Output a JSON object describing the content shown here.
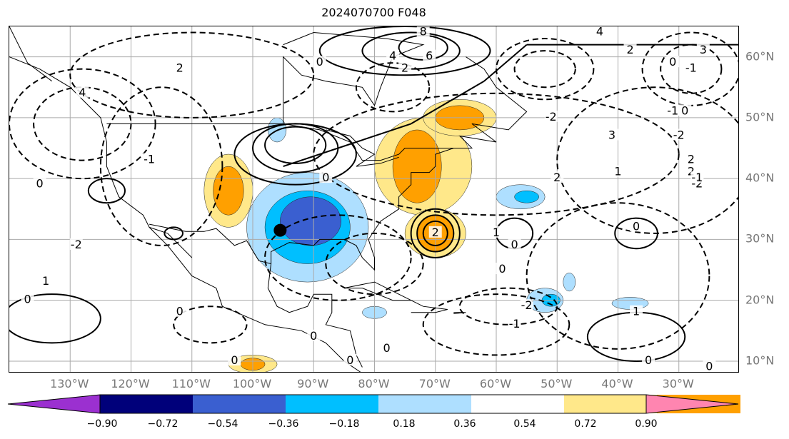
{
  "title": "2024070700 F048",
  "lon_labels": [
    "130°W",
    "120°W",
    "110°W",
    "100°W",
    "90°W",
    "80°W",
    "70°W",
    "60°W",
    "50°W",
    "40°W",
    "30°W"
  ],
  "lat_labels": [
    "60°N",
    "50°N",
    "40°N",
    "30°N",
    "20°N",
    "10°N"
  ],
  "colorbar": {
    "colors": [
      "#9b30d0",
      "#00007a",
      "#3a5fd0",
      "#00bfff",
      "#aedfff",
      "#ffffff",
      "#ffe88a",
      "#ffa000",
      "#ff3d00",
      "#b22222",
      "#ff85b0"
    ],
    "tick_labels": [
      "−0.90",
      "−0.72",
      "−0.54",
      "−0.36",
      "−0.18",
      "0.18",
      "0.36",
      "0.54",
      "0.72",
      "0.90"
    ]
  },
  "contour_labels": [
    {
      "text": "2",
      "lon": -112,
      "lat": 58
    },
    {
      "text": "4",
      "lon": -128,
      "lat": 54
    },
    {
      "text": "-1",
      "lon": -117,
      "lat": 43
    },
    {
      "text": "0",
      "lon": -135,
      "lat": 39
    },
    {
      "text": "-2",
      "lon": -129,
      "lat": 29
    },
    {
      "text": "1",
      "lon": -134,
      "lat": 23
    },
    {
      "text": "0",
      "lon": -137,
      "lat": 20
    },
    {
      "text": "8",
      "lon": -72,
      "lat": 64
    },
    {
      "text": "6",
      "lon": -71,
      "lat": 60
    },
    {
      "text": "4",
      "lon": -77,
      "lat": 60
    },
    {
      "text": "2",
      "lon": -75,
      "lat": 58
    },
    {
      "text": "0",
      "lon": -89,
      "lat": 59
    },
    {
      "text": "4",
      "lon": -43,
      "lat": 64
    },
    {
      "text": "2",
      "lon": -38,
      "lat": 61
    },
    {
      "text": "3",
      "lon": -26,
      "lat": 61
    },
    {
      "text": "0",
      "lon": -31,
      "lat": 59
    },
    {
      "text": "-1",
      "lon": -28,
      "lat": 58
    },
    {
      "text": "-2",
      "lon": -30,
      "lat": 47
    },
    {
      "text": "-1",
      "lon": -31,
      "lat": 51
    },
    {
      "text": "0",
      "lon": -29,
      "lat": 51
    },
    {
      "text": "3",
      "lon": -41,
      "lat": 47
    },
    {
      "text": "2",
      "lon": -28,
      "lat": 43
    },
    {
      "text": "1",
      "lon": -40,
      "lat": 41
    },
    {
      "text": "-2",
      "lon": -51,
      "lat": 50
    },
    {
      "text": "2",
      "lon": -50,
      "lat": 40
    },
    {
      "text": "-2",
      "lon": -27,
      "lat": 39
    },
    {
      "text": "2",
      "lon": -28,
      "lat": 41
    },
    {
      "text": "-1",
      "lon": -27,
      "lat": 40
    },
    {
      "text": "0",
      "lon": -88,
      "lat": 40
    },
    {
      "text": "2",
      "lon": -70,
      "lat": 31
    },
    {
      "text": "0",
      "lon": -37,
      "lat": 32
    },
    {
      "text": "1",
      "lon": -60,
      "lat": 31
    },
    {
      "text": "0",
      "lon": -57,
      "lat": 29
    },
    {
      "text": "0",
      "lon": -59,
      "lat": 25
    },
    {
      "text": "-2",
      "lon": -55,
      "lat": 19
    },
    {
      "text": "-1",
      "lon": -57,
      "lat": 16
    },
    {
      "text": "1",
      "lon": -37,
      "lat": 18
    },
    {
      "text": "0",
      "lon": -35,
      "lat": 10
    },
    {
      "text": "0",
      "lon": -25,
      "lat": 9
    },
    {
      "text": "0",
      "lon": -103,
      "lat": 10
    },
    {
      "text": "0",
      "lon": -112,
      "lat": 18
    },
    {
      "text": "0",
      "lon": -90,
      "lat": 14
    },
    {
      "text": "0",
      "lon": -84,
      "lat": 10
    },
    {
      "text": "0",
      "lon": -78,
      "lat": 12
    }
  ],
  "marker": {
    "lon": -95.5,
    "lat": 31.5
  }
}
